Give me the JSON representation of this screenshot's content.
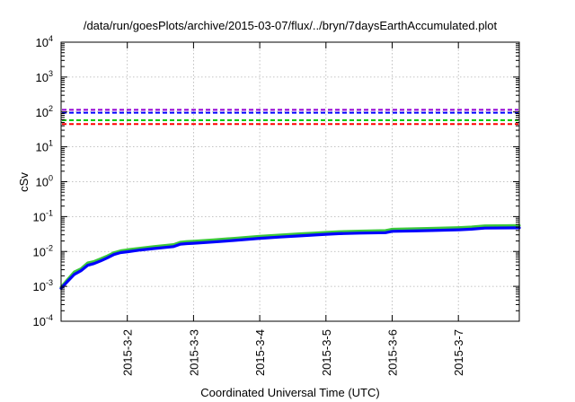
{
  "chart_data": {
    "type": "line",
    "title": "/data/run/goesPlots/archive/2015-03-07/flux/../bryn/7daysEarthAccumulated.plot",
    "xlabel": "Coordinated Universal Time (UTC)",
    "ylabel": "cSv",
    "yscale": "log",
    "ylim": [
      0.0001,
      10000
    ],
    "xlim": [
      1.0,
      7.92
    ],
    "grid": true,
    "x_ticks": [
      {
        "value": 2,
        "label": "2015-3-2"
      },
      {
        "value": 3,
        "label": "2015-3-3"
      },
      {
        "value": 4,
        "label": "2015-3-4"
      },
      {
        "value": 5,
        "label": "2015-3-5"
      },
      {
        "value": 6,
        "label": "2015-3-6"
      },
      {
        "value": 7,
        "label": "2015-3-7"
      }
    ],
    "y_ticks": [
      {
        "value": 0.0001,
        "base": "10",
        "exp": "-4"
      },
      {
        "value": 0.001,
        "base": "10",
        "exp": "-3"
      },
      {
        "value": 0.01,
        "base": "10",
        "exp": "-2"
      },
      {
        "value": 0.1,
        "base": "10",
        "exp": "-1"
      },
      {
        "value": 1,
        "base": "10",
        "exp": "0"
      },
      {
        "value": 10,
        "base": "10",
        "exp": "1"
      },
      {
        "value": 100,
        "base": "10",
        "exp": "2"
      },
      {
        "value": 1000,
        "base": "10",
        "exp": "3"
      },
      {
        "value": 10000,
        "base": "10",
        "exp": "4"
      }
    ],
    "thresholds": [
      {
        "value": 115,
        "color": "#9400d3"
      },
      {
        "value": 95,
        "color": "#0000ff"
      },
      {
        "value": 58,
        "color": "#00c800"
      },
      {
        "value": 45,
        "color": "#ff0000"
      }
    ],
    "series": [
      {
        "color": "#3cc83c",
        "x": [
          1.0,
          1.1,
          1.2,
          1.3,
          1.4,
          1.5,
          1.6,
          1.7,
          1.8,
          1.9,
          2.0,
          2.2,
          2.4,
          2.7,
          2.8,
          2.9,
          3.0,
          3.3,
          3.6,
          4.0,
          4.3,
          4.6,
          4.8,
          5.0,
          5.2,
          5.5,
          5.9,
          6.0,
          6.3,
          6.6,
          7.0,
          7.2,
          7.4,
          7.92
        ],
        "values": [
          0.00095,
          0.0016,
          0.0026,
          0.0032,
          0.0047,
          0.0052,
          0.0062,
          0.0075,
          0.0093,
          0.0105,
          0.0112,
          0.0125,
          0.0138,
          0.0158,
          0.0185,
          0.0193,
          0.0198,
          0.0216,
          0.0238,
          0.0273,
          0.0296,
          0.0322,
          0.0338,
          0.0355,
          0.0372,
          0.0385,
          0.0398,
          0.0435,
          0.0448,
          0.0462,
          0.0485,
          0.0505,
          0.0545,
          0.0555
        ]
      },
      {
        "color": "#0000ff",
        "x": [
          1.0,
          1.1,
          1.2,
          1.3,
          1.4,
          1.5,
          1.6,
          1.7,
          1.8,
          1.9,
          2.0,
          2.2,
          2.4,
          2.7,
          2.8,
          2.9,
          3.0,
          3.3,
          3.6,
          4.0,
          4.3,
          4.6,
          4.8,
          5.0,
          5.2,
          5.5,
          5.9,
          6.0,
          6.3,
          6.6,
          7.0,
          7.2,
          7.4,
          7.92
        ],
        "values": [
          0.00088,
          0.0014,
          0.0022,
          0.0028,
          0.004,
          0.0045,
          0.0054,
          0.0066,
          0.0082,
          0.0093,
          0.0098,
          0.011,
          0.0121,
          0.0138,
          0.0162,
          0.0168,
          0.0172,
          0.0187,
          0.0207,
          0.0238,
          0.0258,
          0.028,
          0.0295,
          0.031,
          0.0324,
          0.0335,
          0.0346,
          0.0378,
          0.0388,
          0.0398,
          0.0418,
          0.0435,
          0.0468,
          0.0475
        ]
      }
    ]
  }
}
